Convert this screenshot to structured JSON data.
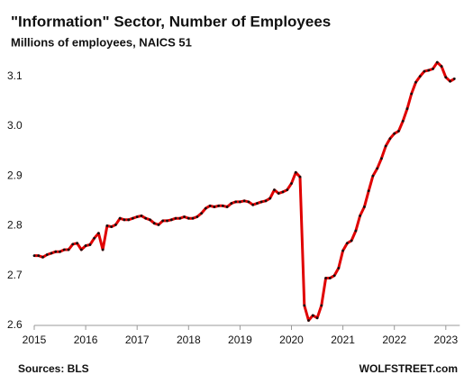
{
  "chart_data": {
    "type": "line",
    "title": "\"Information\" Sector, Number of Employees",
    "subtitle": "Millions of employees, NAICS 51",
    "source": "Sources: BLS",
    "brand": "WOLFSTREET.com",
    "categories": [
      "2015",
      null,
      null,
      null,
      null,
      null,
      null,
      null,
      null,
      null,
      null,
      null,
      "2016",
      null,
      null,
      null,
      null,
      null,
      null,
      null,
      null,
      null,
      null,
      null,
      "2017",
      null,
      null,
      null,
      null,
      null,
      null,
      null,
      null,
      null,
      null,
      null,
      "2018",
      null,
      null,
      null,
      null,
      null,
      null,
      null,
      null,
      null,
      null,
      null,
      "2019",
      null,
      null,
      null,
      null,
      null,
      null,
      null,
      null,
      null,
      null,
      null,
      "2020",
      null,
      null,
      null,
      null,
      null,
      null,
      null,
      null,
      null,
      null,
      null,
      "2021",
      null,
      null,
      null,
      null,
      null,
      null,
      null,
      null,
      null,
      null,
      null,
      "2022",
      null,
      null,
      null,
      null,
      null,
      null,
      null,
      null,
      null,
      null,
      null,
      "2023",
      null,
      null
    ],
    "series": [
      {
        "name": "Employees",
        "color": "#e00000",
        "marker_color": "#111111",
        "values": [
          2.74,
          2.74,
          2.737,
          2.742,
          2.745,
          2.748,
          2.748,
          2.752,
          2.752,
          2.763,
          2.765,
          2.752,
          2.76,
          2.762,
          2.775,
          2.785,
          2.752,
          2.8,
          2.798,
          2.802,
          2.815,
          2.812,
          2.812,
          2.815,
          2.818,
          2.82,
          2.815,
          2.812,
          2.805,
          2.802,
          2.81,
          2.81,
          2.812,
          2.815,
          2.815,
          2.818,
          2.815,
          2.815,
          2.818,
          2.825,
          2.835,
          2.84,
          2.838,
          2.84,
          2.84,
          2.838,
          2.845,
          2.848,
          2.848,
          2.85,
          2.848,
          2.842,
          2.845,
          2.848,
          2.85,
          2.855,
          2.872,
          2.865,
          2.868,
          2.872,
          2.885,
          2.907,
          2.898,
          2.64,
          2.61,
          2.62,
          2.615,
          2.64,
          2.695,
          2.695,
          2.7,
          2.715,
          2.75,
          2.765,
          2.77,
          2.79,
          2.82,
          2.838,
          2.87,
          2.9,
          2.915,
          2.935,
          2.96,
          2.975,
          2.985,
          2.99,
          3.01,
          3.035,
          3.065,
          3.088,
          3.1,
          3.11,
          3.112,
          3.115,
          3.128,
          3.12,
          3.098,
          3.09,
          3.095
        ]
      }
    ],
    "ylim": [
      2.6,
      3.15
    ],
    "yticks": [
      2.6,
      2.7,
      2.8,
      2.9,
      {
        "value": 3,
        "label": "3.0"
      },
      3.1
    ],
    "grid": false
  }
}
